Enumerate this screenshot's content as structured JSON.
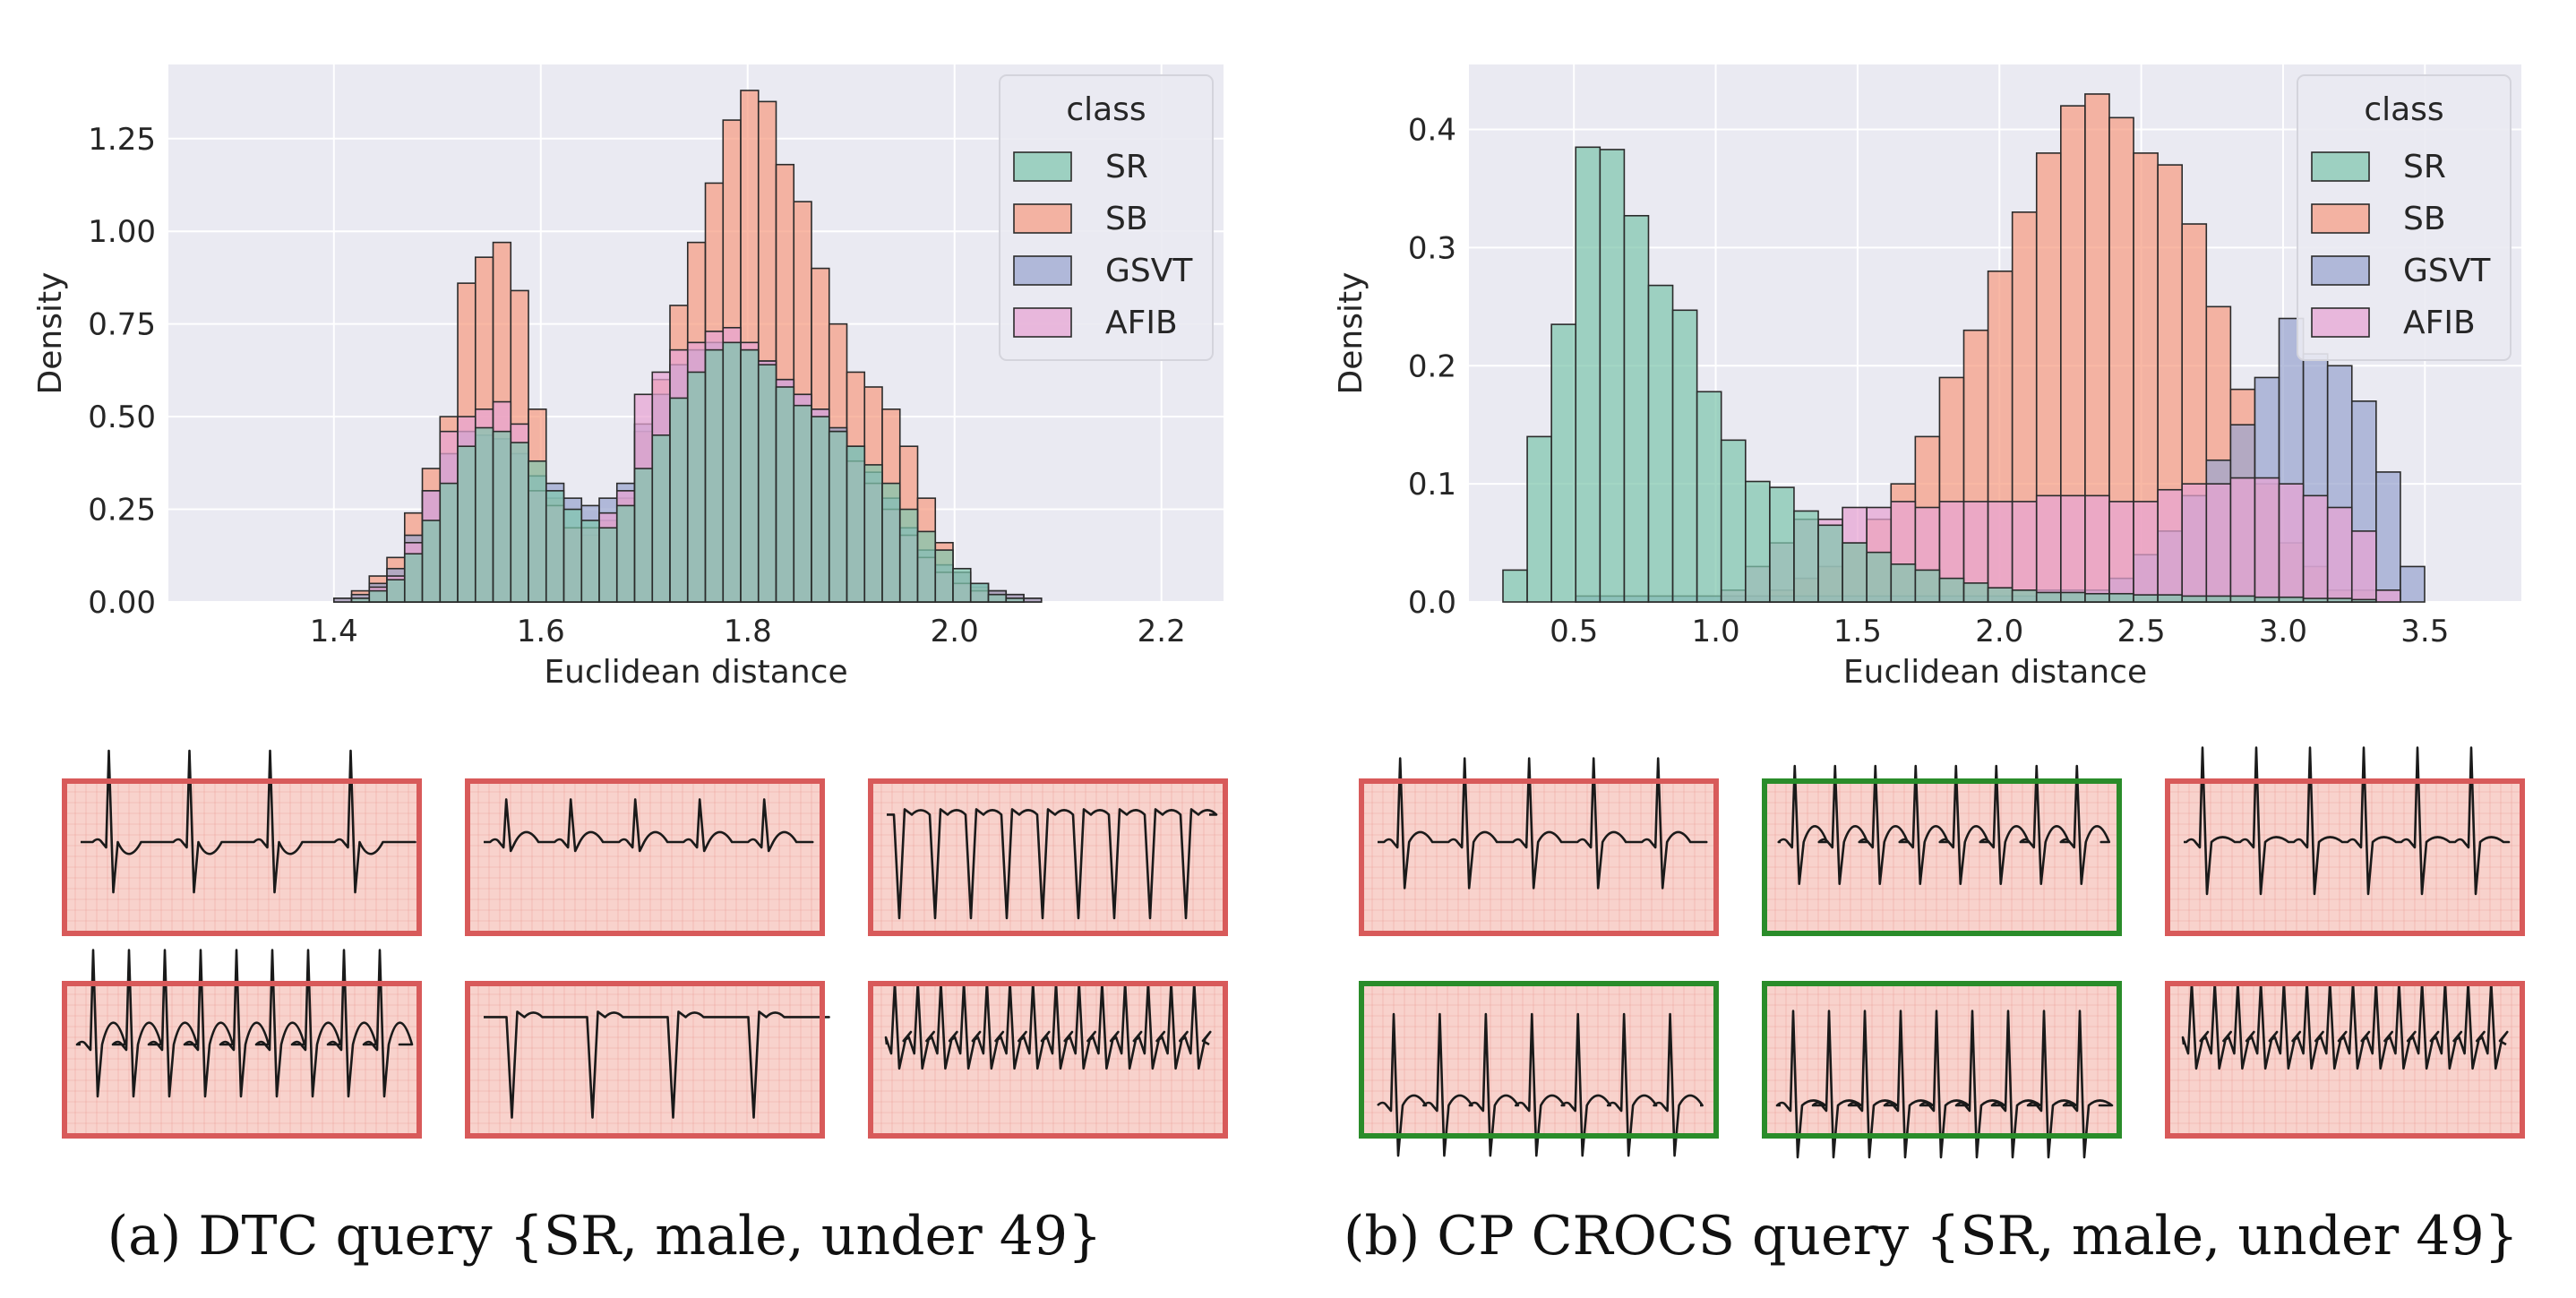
{
  "chart_data": [
    {
      "type": "histogram",
      "xlabel": "Euclidean distance",
      "ylabel": "Density",
      "xticks": [
        "1.4",
        "1.6",
        "1.8",
        "2.0",
        "2.2"
      ],
      "yticks": [
        "0.00",
        "0.25",
        "0.50",
        "0.75",
        "1.00",
        "1.25"
      ],
      "xlim": [
        1.24,
        2.26
      ],
      "ylim": [
        0,
        1.45
      ],
      "grid": true,
      "legend": {
        "title": "class",
        "placement": "top-right",
        "entries": [
          "SR",
          "SB",
          "GSVT",
          "AFIB"
        ]
      },
      "bins": {
        "start": 1.4,
        "width": 0.0171
      },
      "series": [
        {
          "label": "SB",
          "color": "#f79d82",
          "values": [
            0.01,
            0.03,
            0.07,
            0.12,
            0.24,
            0.36,
            0.5,
            0.86,
            0.93,
            0.97,
            0.84,
            0.52,
            0.28,
            0.2,
            0.18,
            0.22,
            0.28,
            0.46,
            0.6,
            0.8,
            0.97,
            1.13,
            1.3,
            1.38,
            1.35,
            1.18,
            1.08,
            0.9,
            0.75,
            0.62,
            0.58,
            0.52,
            0.42,
            0.28,
            0.16,
            0.08,
            0.04,
            0.03,
            0.02,
            0.01
          ]
        },
        {
          "label": "GSVT",
          "color": "#9aa5ce",
          "values": [
            0.01,
            0.02,
            0.05,
            0.09,
            0.18,
            0.3,
            0.4,
            0.46,
            0.45,
            0.44,
            0.4,
            0.34,
            0.32,
            0.28,
            0.26,
            0.28,
            0.32,
            0.48,
            0.56,
            0.64,
            0.68,
            0.7,
            0.7,
            0.68,
            0.65,
            0.6,
            0.56,
            0.52,
            0.47,
            0.42,
            0.35,
            0.28,
            0.2,
            0.14,
            0.1,
            0.08,
            0.05,
            0.03,
            0.02,
            0.01
          ]
        },
        {
          "label": "AFIB",
          "color": "#e8a4d2",
          "values": [
            0.0,
            0.01,
            0.04,
            0.07,
            0.16,
            0.3,
            0.46,
            0.5,
            0.52,
            0.54,
            0.48,
            0.3,
            0.26,
            0.2,
            0.2,
            0.24,
            0.3,
            0.56,
            0.62,
            0.68,
            0.7,
            0.73,
            0.74,
            0.7,
            0.65,
            0.6,
            0.56,
            0.52,
            0.46,
            0.38,
            0.32,
            0.25,
            0.18,
            0.12,
            0.08,
            0.05,
            0.03,
            0.02,
            0.01,
            0.0
          ]
        },
        {
          "label": "SR",
          "color": "#7fc6ad",
          "values": [
            0.0,
            0.01,
            0.03,
            0.06,
            0.13,
            0.22,
            0.32,
            0.42,
            0.47,
            0.46,
            0.43,
            0.38,
            0.3,
            0.25,
            0.22,
            0.2,
            0.26,
            0.36,
            0.45,
            0.55,
            0.62,
            0.68,
            0.7,
            0.68,
            0.64,
            0.58,
            0.53,
            0.5,
            0.46,
            0.42,
            0.37,
            0.32,
            0.25,
            0.19,
            0.14,
            0.09,
            0.05,
            0.02,
            0.01,
            0.0
          ]
        }
      ]
    },
    {
      "type": "histogram",
      "xlabel": "Euclidean distance",
      "ylabel": "Density",
      "xticks": [
        "0.5",
        "1.0",
        "1.5",
        "2.0",
        "2.5",
        "3.0",
        "3.5"
      ],
      "yticks": [
        "0.0",
        "0.1",
        "0.2",
        "0.3",
        "0.4"
      ],
      "xlim": [
        0.13,
        3.84
      ],
      "ylim": [
        0,
        0.455
      ],
      "grid": true,
      "legend": {
        "title": "class",
        "placement": "top-right",
        "entries": [
          "SR",
          "SB",
          "GSVT",
          "AFIB"
        ]
      },
      "bins": {
        "start": 0.25,
        "width": 0.0855
      },
      "series": [
        {
          "label": "SB",
          "color": "#f79d82",
          "values": [
            0,
            0,
            0,
            0,
            0,
            0,
            0,
            0,
            0,
            0,
            0,
            0.01,
            0.02,
            0.03,
            0.05,
            0.07,
            0.1,
            0.14,
            0.19,
            0.23,
            0.28,
            0.33,
            0.38,
            0.42,
            0.43,
            0.41,
            0.38,
            0.37,
            0.32,
            0.25,
            0.18,
            0.1,
            0.05,
            0.03,
            0.01,
            0.01,
            0.0,
            0.0
          ]
        },
        {
          "label": "GSVT",
          "color": "#9aa5ce",
          "values": [
            0,
            0,
            0,
            0.005,
            0.005,
            0.005,
            0.005,
            0.005,
            0.005,
            0.005,
            0.005,
            0.005,
            0.005,
            0.005,
            0.005,
            0.005,
            0.005,
            0.005,
            0.005,
            0.005,
            0.005,
            0.005,
            0.01,
            0.01,
            0.01,
            0.02,
            0.04,
            0.06,
            0.09,
            0.12,
            0.15,
            0.19,
            0.24,
            0.21,
            0.2,
            0.17,
            0.11,
            0.03
          ]
        },
        {
          "label": "AFIB",
          "color": "#e8a4d2",
          "values": [
            0,
            0,
            0,
            0,
            0,
            0,
            0,
            0,
            0,
            0.01,
            0.03,
            0.05,
            0.07,
            0.07,
            0.08,
            0.08,
            0.085,
            0.08,
            0.085,
            0.085,
            0.085,
            0.085,
            0.09,
            0.09,
            0.09,
            0.085,
            0.085,
            0.095,
            0.1,
            0.1,
            0.105,
            0.105,
            0.1,
            0.09,
            0.08,
            0.06,
            0.01,
            0.0
          ]
        },
        {
          "label": "SR",
          "color": "#7fc6ad",
          "values": [
            0.027,
            0.14,
            0.235,
            0.385,
            0.383,
            0.327,
            0.268,
            0.247,
            0.178,
            0.137,
            0.102,
            0.097,
            0.077,
            0.065,
            0.05,
            0.042,
            0.032,
            0.027,
            0.02,
            0.016,
            0.012,
            0.01,
            0.008,
            0.008,
            0.007,
            0.007,
            0.006,
            0.006,
            0.005,
            0.005,
            0.005,
            0.004,
            0.004,
            0.003,
            0.003,
            0.002,
            0.0,
            0.0
          ]
        }
      ]
    }
  ],
  "ecg_panels": [
    {
      "panel": 0,
      "tiles": [
        {
          "pattern": "sr-inverted",
          "status": "incorrect"
        },
        {
          "pattern": "low-amplitude",
          "status": "incorrect"
        },
        {
          "pattern": "inverted-spikes",
          "status": "incorrect"
        },
        {
          "pattern": "rhythm-waves",
          "status": "incorrect"
        },
        {
          "pattern": "inverted-sparse",
          "status": "incorrect"
        },
        {
          "pattern": "tachy-busy",
          "status": "incorrect"
        }
      ]
    },
    {
      "panel": 1,
      "tiles": [
        {
          "pattern": "sr-normal",
          "status": "incorrect"
        },
        {
          "pattern": "sr-tall",
          "status": "correct"
        },
        {
          "pattern": "sr-irregular",
          "status": "incorrect"
        },
        {
          "pattern": "sr-baseline",
          "status": "correct"
        },
        {
          "pattern": "sr-fast",
          "status": "correct"
        },
        {
          "pattern": "tachy-busy",
          "status": "incorrect"
        }
      ]
    }
  ],
  "tile_colors": {
    "incorrect_border": "#d85a5a",
    "correct_border": "#2a8c2a",
    "fill": "#f8d2cc",
    "grid": "#e99a92"
  },
  "captions": [
    {
      "label": "(a) DTC query {SR, male, under 49}"
    },
    {
      "label": "(b) CP CROCS query {SR, male, under 49}"
    }
  ]
}
